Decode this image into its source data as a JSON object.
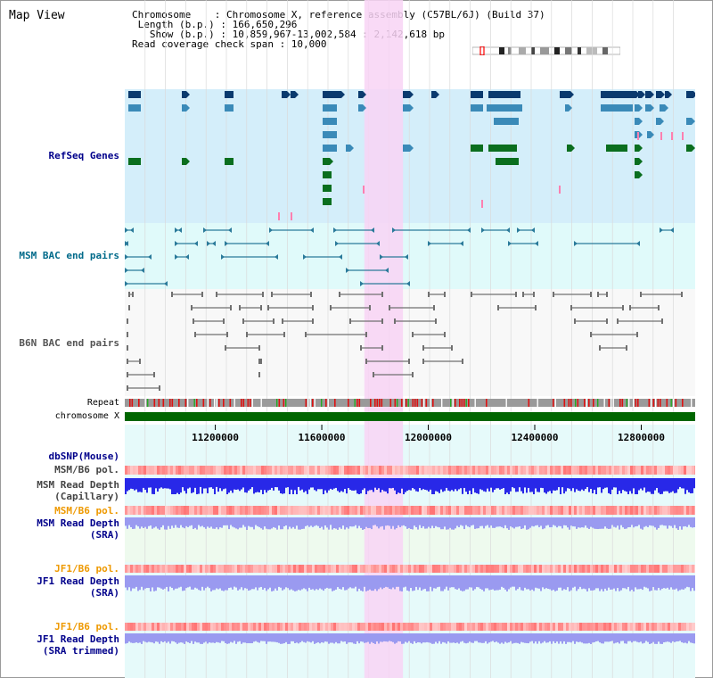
{
  "header": {
    "title": "Map View",
    "info_lines": [
      "Chromosome    : Chromosome X, reference assembly (C57BL/6J) (Build 37)",
      " Length (b.p.) : 166,650,296",
      "   Show (b.p.) : 10,859,967-13,002,584 : 2,142,618 bp",
      "Read coverage check span : 10,000"
    ]
  },
  "tracks": {
    "refseq": "RefSeq Genes",
    "msm_bac": "MSM BAC end pairs",
    "b6n_bac": "B6N BAC end pairs",
    "repeat": "Repeat",
    "chromosome": "chromosome X",
    "dbsnp": "dbSNP(Mouse)",
    "msm_b6_pol_1": "MSM/B6 pol.",
    "msm_read_depth_cap": "MSM Read Depth",
    "msm_read_depth_cap_sub": "(Capillary)",
    "msm_b6_pol_2": "MSM/B6 pol.",
    "msm_read_depth_sra": "MSM Read Depth",
    "msm_read_depth_sra_sub": "(SRA)",
    "jf1_b6_pol_1": "JF1/B6 pol.",
    "jf1_read_depth_sra": "JF1 Read Depth",
    "jf1_read_depth_sra_sub": "(SRA)",
    "jf1_b6_pol_2": "JF1/B6 pol.",
    "jf1_read_depth_trim": "JF1 Read Depth",
    "jf1_read_depth_trim_sub": "(SRA trimmed)"
  },
  "axis": {
    "ticks": [
      {
        "value": 11200000,
        "label": "11200000"
      },
      {
        "value": 11600000,
        "label": "11600000"
      },
      {
        "value": 12000000,
        "label": "12000000"
      },
      {
        "value": 12400000,
        "label": "12400000"
      },
      {
        "value": 12800000,
        "label": "12800000"
      }
    ],
    "range": [
      10859967,
      13002584
    ],
    "highlight": [
      11760000,
      11905000
    ]
  },
  "colors": {
    "refseq_bg": "#d4eefa",
    "msm_bac_bg": "#e0fafa",
    "b6n_bac_bg": "#f8f8f8",
    "lower_bg": "#e6fafa",
    "highlight": "#f8d4f4",
    "navy_gene": "#0a3a6e",
    "teal_gene": "#3a8ab8",
    "green_gene": "#0a6e1e",
    "bac_msm": "#2a7a9a",
    "bac_b6n": "#707070",
    "chromosome": "#006600",
    "pol": "#ff6a6a",
    "depth_dark": "#2828e8",
    "depth_light": "#9a9af0",
    "label_navy": "#00008b",
    "label_orange": "#ee9900",
    "label_gray": "#444444",
    "label_teal": "#006a8a"
  }
}
